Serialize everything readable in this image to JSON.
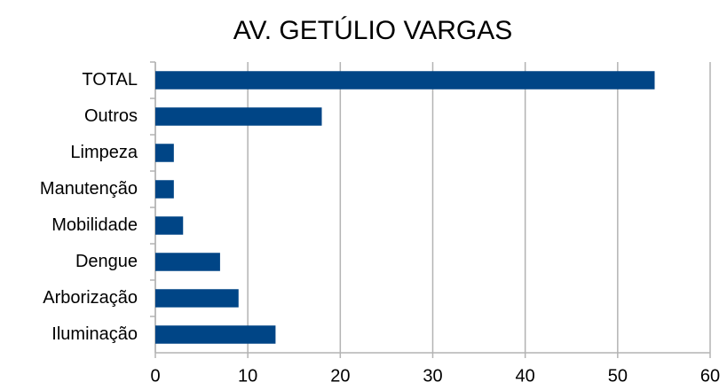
{
  "chart_data": {
    "type": "barh",
    "title": "AV. GETÚLIO VARGAS",
    "categories": [
      "TOTAL",
      "Outros",
      "Limpeza",
      "Manutenção",
      "Mobilidade",
      "Dengue",
      "Arborização",
      "Iluminação"
    ],
    "values": [
      54,
      18,
      2,
      2,
      3,
      7,
      9,
      13
    ],
    "color": "#004586",
    "xlim": [
      0,
      60
    ],
    "xticks": [
      0,
      10,
      20,
      30,
      40,
      50,
      60
    ],
    "grid": true
  }
}
